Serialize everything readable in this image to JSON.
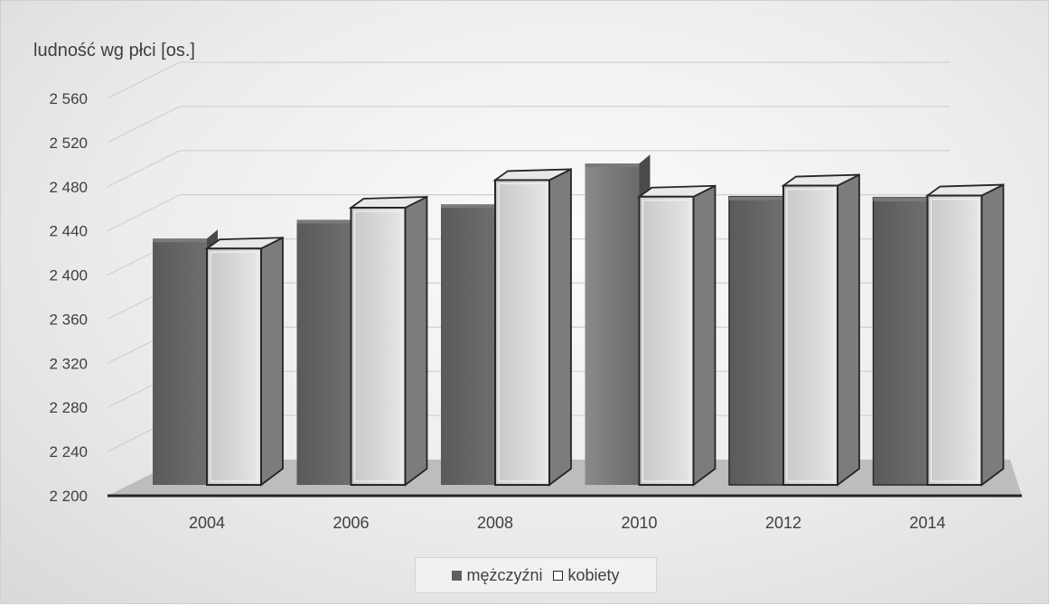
{
  "chart_data": {
    "type": "bar",
    "ylabel": "ludność wg płci [os.]",
    "categories": [
      "2004",
      "2006",
      "2008",
      "2010",
      "2012",
      "2014"
    ],
    "y_tick_labels": [
      "2 200",
      "2 240",
      "2 280",
      "2 320",
      "2 360",
      "2 400",
      "2 440",
      "2 480",
      "2 520",
      "2 560"
    ],
    "ylim": [
      2200,
      2560
    ],
    "grid": true,
    "legend_position": "bottom",
    "series": [
      {
        "name": "mężczyźni",
        "values": [
          2433,
          2450,
          2464,
          2501,
          2471,
          2470
        ],
        "color": "#5f5f5f"
      },
      {
        "name": "kobiety",
        "values": [
          2424,
          2461,
          2486,
          2471,
          2481,
          2472
        ],
        "color": "#d6d6d6"
      }
    ]
  }
}
